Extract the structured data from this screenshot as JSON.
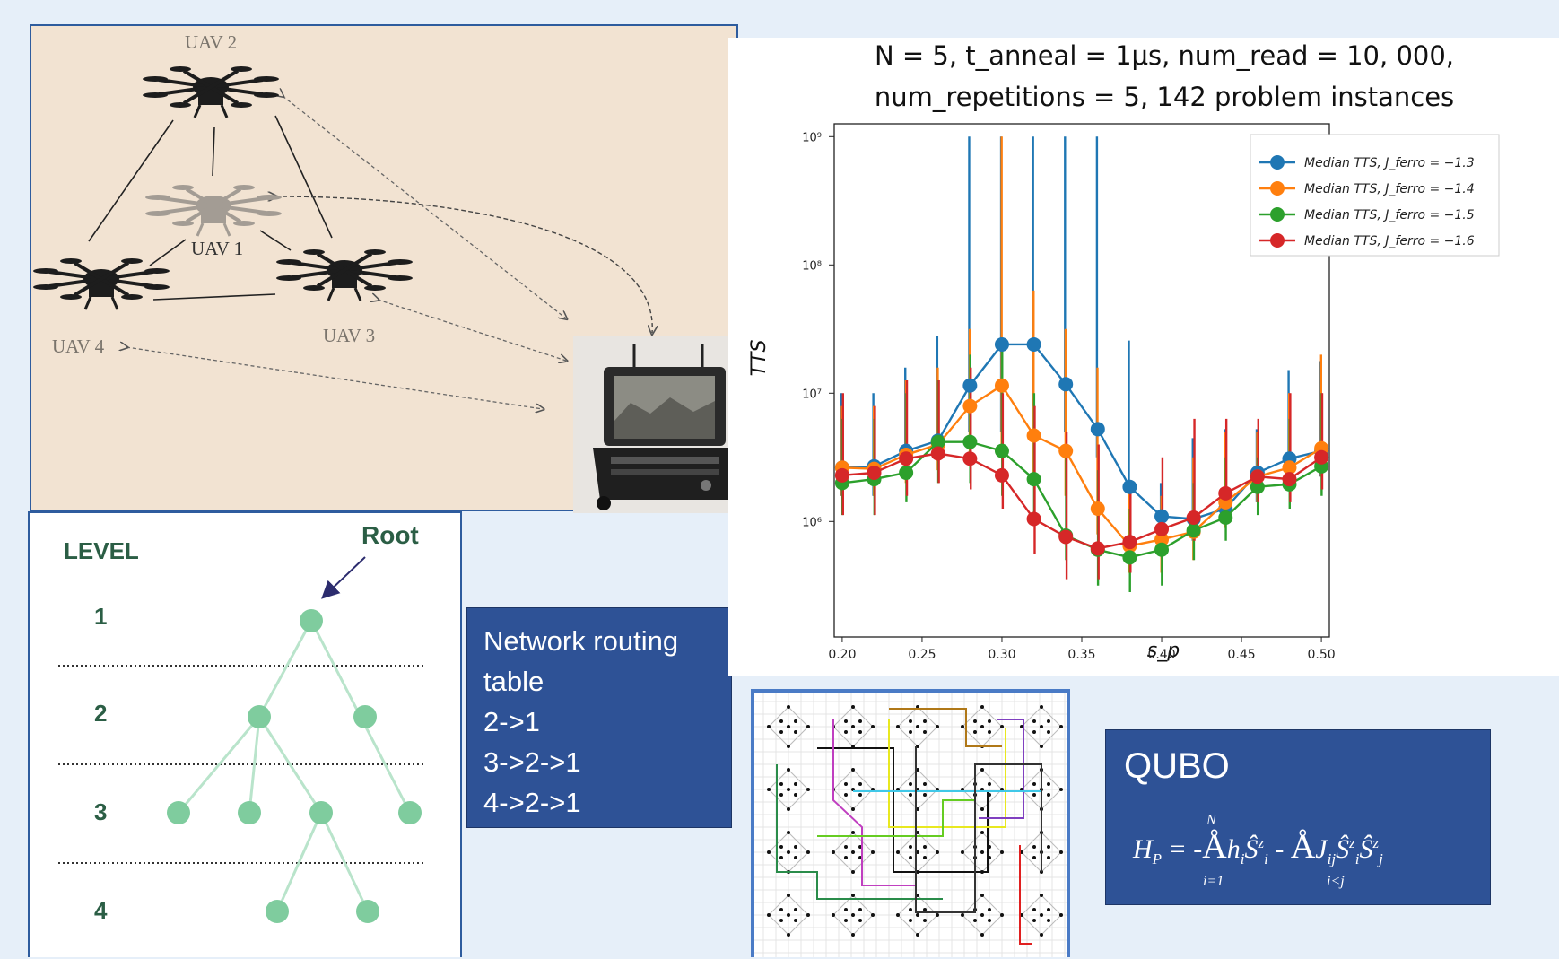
{
  "uav_diagram": {
    "labels": {
      "uav2": "UAV 2",
      "uav1": "UAV 1",
      "uav3": "UAV 3",
      "uav4": "UAV 4"
    }
  },
  "tree": {
    "level_header": "LEVEL",
    "root_label": "Root",
    "levels": [
      "1",
      "2",
      "3",
      "4"
    ],
    "node_color": "#7fcc9e",
    "edge_color": "#b9e4cb"
  },
  "routing_table": {
    "lines": [
      "Network routing",
      "table",
      "2->1",
      "3->2->1",
      "4->2->1"
    ]
  },
  "chart_data": {
    "type": "line",
    "title_line1": "N = 5, t_anneal = 1μs, num_read = 10, 000,",
    "title_line2": "num_repetitions = 5, 142 problem instances",
    "xlabel": "s_p",
    "ylabel": "TTS",
    "x_ticks": [
      "0.20",
      "0.25",
      "0.30",
      "0.35",
      "0.40",
      "0.45",
      "0.50"
    ],
    "y_ticks": [
      "10⁶",
      "10⁷",
      "10⁸",
      "10⁹"
    ],
    "y_scale": "log",
    "xlim": [
      0.195,
      0.505
    ],
    "ylim_log10": [
      5.1,
      9.1
    ],
    "legend_position": "top-right",
    "x": [
      0.2,
      0.22,
      0.24,
      0.26,
      0.28,
      0.3,
      0.32,
      0.34,
      0.36,
      0.38,
      0.4,
      0.42,
      0.44,
      0.46,
      0.48,
      0.5
    ],
    "series": [
      {
        "name": "Median TTS, J_ferro = −1.3",
        "color": "#1f77b4",
        "log10_median": [
          6.42,
          6.43,
          6.55,
          6.63,
          7.06,
          7.38,
          7.38,
          7.07,
          6.72,
          6.27,
          6.04,
          6.02,
          6.1,
          6.38,
          6.49,
          6.55
        ],
        "log10_upper": [
          7.0,
          7.0,
          7.2,
          7.45,
          9.0,
          9.0,
          9.0,
          9.0,
          9.0,
          7.41,
          6.3,
          6.65,
          6.72,
          6.72,
          7.18,
          7.25
        ],
        "log10_lower": [
          6.2,
          6.2,
          6.35,
          6.5,
          6.7,
          6.7,
          6.9,
          6.7,
          6.5,
          6.0,
          5.9,
          5.85,
          5.95,
          6.15,
          6.25,
          6.35
        ]
      },
      {
        "name": "Median TTS, J_ferro = −1.4",
        "color": "#ff7f0e",
        "log10_median": [
          6.42,
          6.41,
          6.52,
          6.6,
          6.9,
          7.06,
          6.67,
          6.55,
          6.1,
          5.81,
          5.86,
          5.92,
          6.15,
          6.35,
          6.42,
          6.57
        ],
        "log10_upper": [
          6.9,
          6.9,
          7.1,
          7.2,
          7.5,
          9.0,
          7.8,
          7.5,
          7.2,
          6.3,
          6.2,
          6.5,
          6.7,
          6.7,
          7.0,
          7.3
        ],
        "log10_lower": [
          6.2,
          6.2,
          6.3,
          6.4,
          6.5,
          6.6,
          6.3,
          6.2,
          5.9,
          5.6,
          5.6,
          5.7,
          5.95,
          6.15,
          6.25,
          6.35
        ]
      },
      {
        "name": "Median TTS, J_ferro = −1.5",
        "color": "#2ca02c",
        "log10_median": [
          6.3,
          6.33,
          6.38,
          6.62,
          6.62,
          6.55,
          6.33,
          5.89,
          5.78,
          5.72,
          5.78,
          5.93,
          6.03,
          6.27,
          6.29,
          6.43
        ],
        "log10_upper": [
          6.8,
          6.8,
          7.0,
          7.1,
          7.3,
          7.4,
          7.0,
          6.6,
          6.4,
          6.1,
          6.0,
          6.3,
          6.5,
          6.5,
          6.8,
          7.0
        ],
        "log10_lower": [
          6.05,
          6.05,
          6.15,
          6.3,
          6.3,
          6.2,
          6.0,
          5.7,
          5.5,
          5.45,
          5.5,
          5.7,
          5.85,
          6.05,
          6.1,
          6.2
        ]
      },
      {
        "name": "Median TTS, J_ferro = −1.6",
        "color": "#d62728",
        "log10_median": [
          6.36,
          6.38,
          6.49,
          6.53,
          6.49,
          6.36,
          6.02,
          5.88,
          5.79,
          5.84,
          5.94,
          6.03,
          6.22,
          6.35,
          6.33,
          6.5
        ],
        "log10_upper": [
          7.0,
          6.9,
          7.1,
          7.1,
          7.2,
          7.0,
          6.9,
          6.7,
          6.6,
          6.3,
          6.5,
          6.8,
          6.8,
          6.8,
          7.0,
          7.0
        ],
        "log10_lower": [
          6.05,
          6.05,
          6.2,
          6.3,
          6.25,
          6.1,
          5.75,
          5.55,
          5.55,
          5.6,
          5.75,
          5.85,
          6.05,
          6.15,
          6.15,
          6.25
        ]
      }
    ]
  },
  "qubo": {
    "title": "QUBO",
    "formula_lhs": "H",
    "formula_lhs_sub": "P",
    "formula_sum1_upper": "N",
    "formula_sum1_lower": "i=1",
    "formula_sum2_lower": "i<j"
  }
}
